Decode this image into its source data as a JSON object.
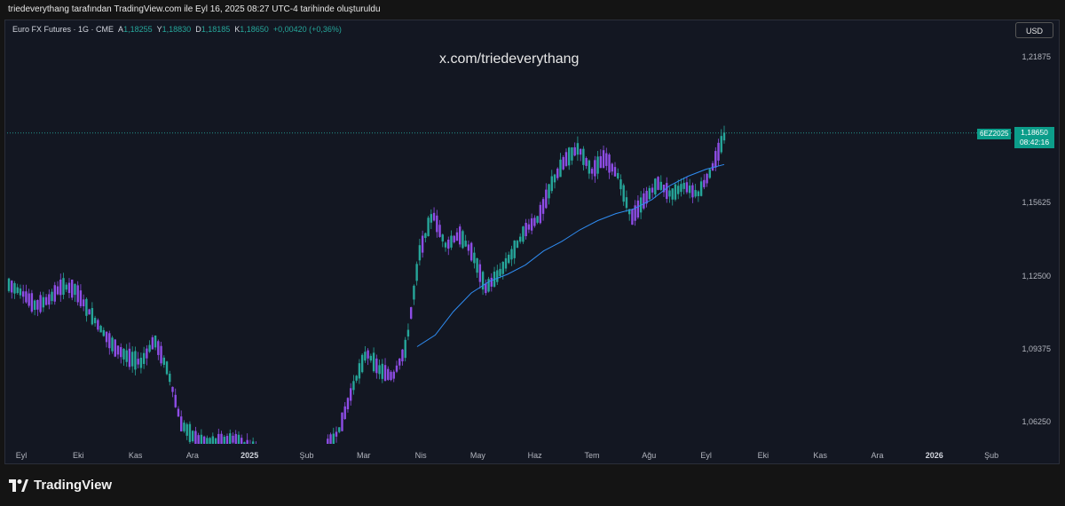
{
  "header": {
    "text": "triedeverythang tarafından TradingView.com ile Eyl 16, 2025 08:27 UTC-4 tarihinde oluşturuldu"
  },
  "legend": {
    "symbol": "Euro FX Futures · 1G · CME",
    "a_label": "A",
    "a_value": "1,18255",
    "y_label": "Y",
    "y_value": "1,18830",
    "d_label": "D",
    "d_value": "1,18185",
    "k_label": "K",
    "k_value": "1,18650",
    "change": "+0,00420 (+0,36%)"
  },
  "currency_button": "USD",
  "watermark": "x.com/triedeverythang",
  "price_tag": {
    "symbol": "6EZ2025",
    "price": "1,18650",
    "countdown": "08:42:16"
  },
  "brand": {
    "name": "TradingView"
  },
  "colors": {
    "up": "#26a69a",
    "down": "#ef5350",
    "ma": "#2962ff",
    "candle_a": "#26a69a",
    "candle_b": "#8e4de6"
  },
  "chart_data": {
    "type": "candlestick",
    "y_ticks": [
      "1,21875",
      "1,18650",
      "1,15625",
      "1,12500",
      "1,09375",
      "1,06250"
    ],
    "x_ticks": [
      {
        "label": "Eyl",
        "bold": false
      },
      {
        "label": "Eki",
        "bold": false
      },
      {
        "label": "Kas",
        "bold": false
      },
      {
        "label": "Ara",
        "bold": false
      },
      {
        "label": "2025",
        "bold": true
      },
      {
        "label": "Şub",
        "bold": false
      },
      {
        "label": "Mar",
        "bold": false
      },
      {
        "label": "Nis",
        "bold": false
      },
      {
        "label": "May",
        "bold": false
      },
      {
        "label": "Haz",
        "bold": false
      },
      {
        "label": "Tem",
        "bold": false
      },
      {
        "label": "Ağu",
        "bold": false
      },
      {
        "label": "Eyl",
        "bold": false
      },
      {
        "label": "Eki",
        "bold": false
      },
      {
        "label": "Kas",
        "bold": false
      },
      {
        "label": "Ara",
        "bold": false
      },
      {
        "label": "2026",
        "bold": true
      },
      {
        "label": "Şub",
        "bold": false
      }
    ],
    "price_path": [
      1.1215,
      1.118,
      1.1125,
      1.115,
      1.121,
      1.1195,
      1.1105,
      1.102,
      1.0945,
      1.0905,
      1.088,
      1.098,
      1.085,
      1.062,
      1.056,
      1.053,
      1.054,
      1.0555,
      1.052,
      1.05,
      1.047,
      1.044,
      1.043,
      1.044,
      1.051,
      1.06,
      1.078,
      1.0925,
      1.085,
      1.082,
      1.095,
      1.135,
      1.152,
      1.138,
      1.143,
      1.135,
      1.12,
      1.126,
      1.135,
      1.145,
      1.15,
      1.165,
      1.175,
      1.18,
      1.17,
      1.176,
      1.168,
      1.15,
      1.158,
      1.165,
      1.16,
      1.164,
      1.16,
      1.17,
      1.185
    ],
    "ma_path": [
      1.095,
      1.1,
      1.11,
      1.118,
      1.123,
      1.126,
      1.13,
      1.136,
      1.14,
      1.145,
      1.149,
      1.152,
      1.154,
      1.158,
      1.164,
      1.168,
      1.171,
      1.173
    ]
  }
}
